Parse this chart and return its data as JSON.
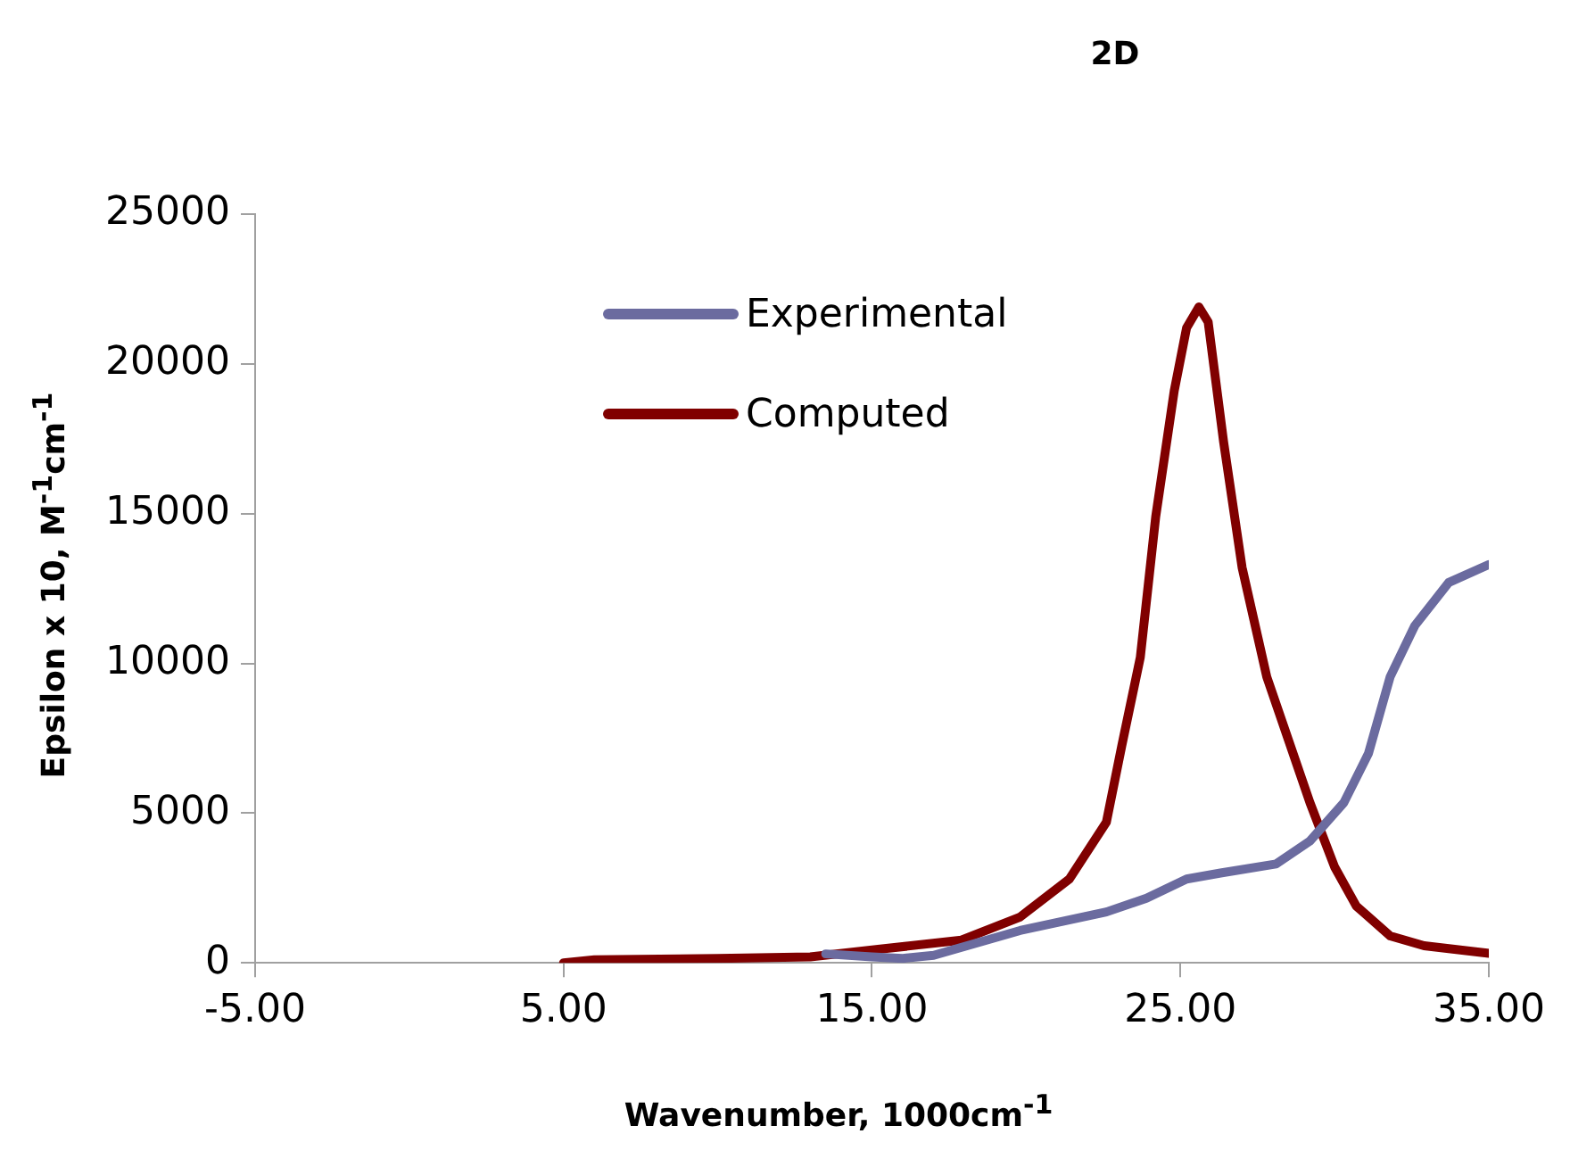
{
  "chart_data": {
    "type": "line",
    "title": "2D",
    "xlabel": "Wavenumber, 1000cm$^{-1}$",
    "ylabel": "Epsilon x 10, M$^{-1}$cm$^{-1}$",
    "xlim": [
      -5,
      35
    ],
    "xticks": [
      {
        "value": -5,
        "label": "-5.00"
      },
      {
        "value": 5,
        "label": "5.00"
      },
      {
        "value": 15,
        "label": "15.00"
      },
      {
        "value": 25,
        "label": "25.00"
      },
      {
        "value": 35,
        "label": "35.00"
      }
    ],
    "ylim": [
      0,
      25000
    ],
    "yticks": [
      0,
      5000,
      10000,
      15000,
      20000,
      25000
    ],
    "grid": false,
    "legend": "top",
    "marker": "none",
    "line_style": "solid",
    "series": [
      {
        "name": "Experimental",
        "color": "#6b6b9f",
        "x": [
          13.5,
          15,
          16,
          17,
          19.8,
          22.6,
          23.9,
          25.2,
          26.3,
          28.1,
          29.2,
          30.3,
          31.1,
          31.8,
          32.6,
          33.7,
          35
        ],
        "values": [
          300,
          200,
          150,
          250,
          1080,
          1700,
          2160,
          2800,
          3000,
          3300,
          4070,
          5350,
          7000,
          9550,
          11260,
          12700,
          13300
        ]
      },
      {
        "name": "Computed",
        "color": "#800000",
        "x": [
          5,
          6,
          10,
          13,
          15.2,
          17.9,
          19.8,
          21.4,
          22.6,
          23.1,
          23.7,
          24.2,
          24.8,
          25.2,
          25.6,
          25.9,
          26.4,
          27,
          27.8,
          28.5,
          29.2,
          30,
          30.7,
          31.8,
          32.9,
          35
        ],
        "values": [
          0,
          100,
          150,
          200,
          450,
          760,
          1530,
          2800,
          4700,
          7250,
          10200,
          14900,
          19100,
          21200,
          21900,
          21400,
          17400,
          13200,
          9550,
          7450,
          5350,
          3200,
          1900,
          900,
          570,
          320
        ]
      }
    ]
  }
}
